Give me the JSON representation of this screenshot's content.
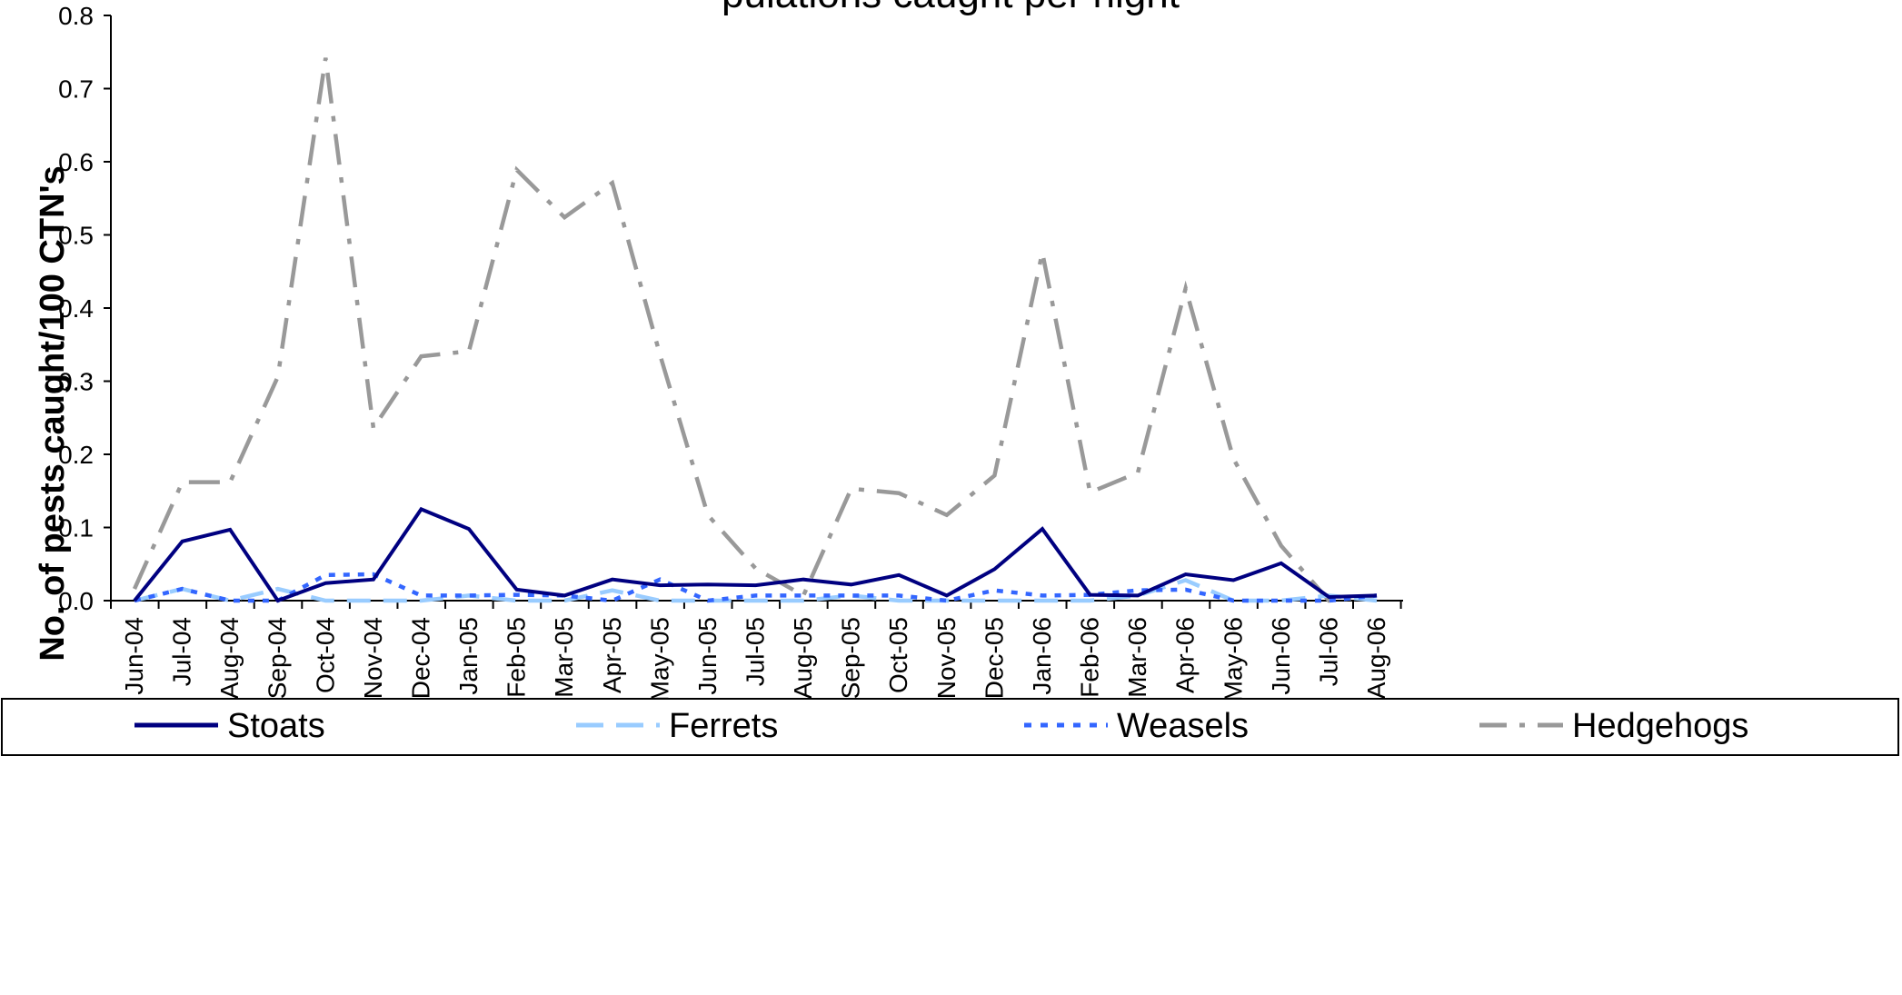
{
  "chart_data": {
    "type": "line",
    "title": "pulations caught per night",
    "xlabel": "",
    "ylabel": "No. of pests caught/100 CTN's",
    "ylim": [
      0,
      0.8
    ],
    "y_ticks": [
      "0.0",
      "0.1",
      "0.2",
      "0.3",
      "0.4",
      "0.5",
      "0.6",
      "0.7",
      "0.8"
    ],
    "grid": false,
    "legend_position": "bottom",
    "categories": [
      "Jun-04",
      "Jul-04",
      "Aug-04",
      "Sep-04",
      "Oct-04",
      "Nov-04",
      "Dec-04",
      "Jan-05",
      "Feb-05",
      "Mar-05",
      "Apr-05",
      "May-05",
      "Jun-05",
      "Jul-05",
      "Aug-05",
      "Sep-05",
      "Oct-05",
      "Nov-05",
      "Dec-05",
      "Jan-06",
      "Feb-06",
      "Mar-06",
      "Apr-06",
      "May-06",
      "Jun-06",
      "Jul-06",
      "Aug-06"
    ],
    "series": [
      {
        "name": "Stoats",
        "color": "#000080",
        "style": "solid",
        "values": [
          0.0,
          0.081,
          0.097,
          0.0,
          0.024,
          0.029,
          0.125,
          0.098,
          0.015,
          0.007,
          0.029,
          0.021,
          0.022,
          0.021,
          0.029,
          0.022,
          0.035,
          0.007,
          0.043,
          0.098,
          0.008,
          0.007,
          0.036,
          0.028,
          0.051,
          0.005,
          0.007
        ]
      },
      {
        "name": "Ferrets",
        "color": "#99CCFF",
        "style": "long-dash",
        "values": [
          0.0,
          0.016,
          0.0,
          0.016,
          0.0,
          0.0,
          0.0,
          0.007,
          0.0,
          0.0,
          0.014,
          0.0,
          0.0,
          0.0,
          0.0,
          0.007,
          0.0,
          0.0,
          0.0,
          0.0,
          0.0,
          0.007,
          0.028,
          0.0,
          0.0,
          0.007,
          0.0
        ]
      },
      {
        "name": "Weasels",
        "color": "#3366FF",
        "style": "dotted",
        "values": [
          0.0,
          0.016,
          0.0,
          0.0,
          0.035,
          0.036,
          0.007,
          0.007,
          0.008,
          0.007,
          0.0,
          0.029,
          0.0,
          0.007,
          0.007,
          0.007,
          0.007,
          0.0,
          0.014,
          0.007,
          0.008,
          0.014,
          0.015,
          0.0,
          0.0,
          0.0,
          0.007
        ]
      },
      {
        "name": "Hedgehogs",
        "color": "#999999",
        "style": "dash-dot",
        "values": [
          0.016,
          0.162,
          0.162,
          0.306,
          0.742,
          0.236,
          0.334,
          0.341,
          0.589,
          0.524,
          0.571,
          0.336,
          0.117,
          0.044,
          0.007,
          0.153,
          0.147,
          0.117,
          0.171,
          0.476,
          0.148,
          0.175,
          0.427,
          0.194,
          0.075,
          0.0,
          0.007
        ]
      }
    ]
  }
}
